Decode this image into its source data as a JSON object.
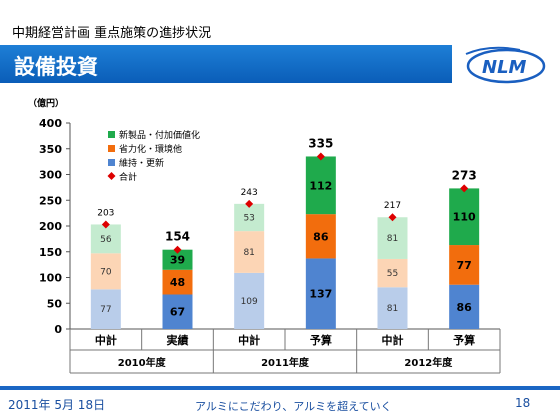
{
  "header": {
    "subtitle": "中期経営計画 重点施策の進捗状況",
    "title": "設備投資",
    "logo_text": "NLM"
  },
  "footer": {
    "date": "2011年 5月 18日",
    "slogan": "アルミにこだわり、アルミを超えていく",
    "page": "18"
  },
  "colors": {
    "title_bar": "#0a5db8",
    "new_product_strong": "#1faa4c",
    "new_product_light": "#c4ebcf",
    "labor_saving_strong": "#f26d0d",
    "labor_saving_light": "#fcd5b5",
    "maintenance_strong": "#4f84d0",
    "maintenance_light": "#b9cdea",
    "total_marker": "#dd0000"
  },
  "chart_data": {
    "type": "bar",
    "stacked": true,
    "unit_label": "（億円）",
    "ylim": [
      0,
      400
    ],
    "yticks": [
      0,
      50,
      100,
      150,
      200,
      250,
      300,
      350,
      400
    ],
    "categories": [
      "中計",
      "実績",
      "中計",
      "予算",
      "中計",
      "予算"
    ],
    "groups": [
      "2010年度",
      "2011年度",
      "2012年度"
    ],
    "series": [
      {
        "name": "維持・更新",
        "values": [
          77,
          67,
          109,
          137,
          81,
          86
        ]
      },
      {
        "name": "省力化・環境他",
        "values": [
          70,
          48,
          81,
          86,
          55,
          77
        ]
      },
      {
        "name": "新製品・付加価値化",
        "values": [
          56,
          39,
          53,
          112,
          81,
          110
        ]
      }
    ],
    "total": {
      "name": "合計",
      "values": [
        203,
        154,
        243,
        335,
        217,
        273
      ]
    },
    "light_bars": [
      true,
      false,
      true,
      false,
      true,
      false
    ],
    "legend_position": "top-left",
    "grid": false
  }
}
